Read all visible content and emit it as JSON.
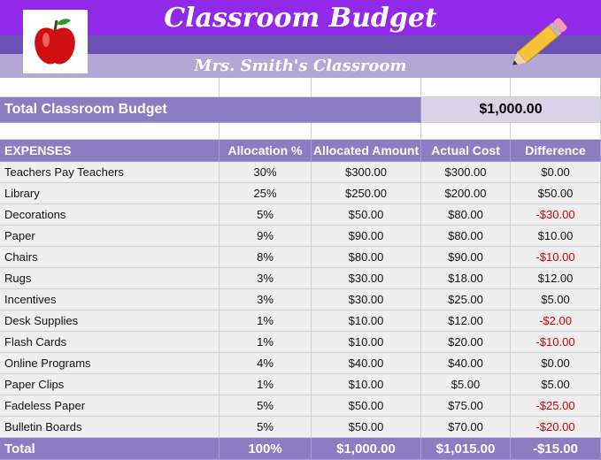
{
  "header": {
    "title": "Classroom Budget",
    "subtitle": "Mrs. Smith's Classroom"
  },
  "total_budget": {
    "label": "Total Classroom Budget",
    "value": "$1,000.00"
  },
  "table": {
    "columns": [
      "EXPENSES",
      "Allocation %",
      "Allocated Amount",
      "Actual Cost",
      "Difference"
    ],
    "rows": [
      [
        "Teachers Pay Teachers",
        "30%",
        "$300.00",
        "$300.00",
        "$0.00"
      ],
      [
        "Library",
        "25%",
        "$250.00",
        "$200.00",
        "$50.00"
      ],
      [
        "Decorations",
        "5%",
        "$50.00",
        "$80.00",
        "-$30.00"
      ],
      [
        "Paper",
        "9%",
        "$90.00",
        "$80.00",
        "$10.00"
      ],
      [
        "Chairs",
        "8%",
        "$80.00",
        "$90.00",
        "-$10.00"
      ],
      [
        "Rugs",
        "3%",
        "$30.00",
        "$18.00",
        "$12.00"
      ],
      [
        "Incentives",
        "3%",
        "$30.00",
        "$25.00",
        "$5.00"
      ],
      [
        "Desk Supplies",
        "1%",
        "$10.00",
        "$12.00",
        "-$2.00"
      ],
      [
        "Flash Cards",
        "1%",
        "$10.00",
        "$20.00",
        "-$10.00"
      ],
      [
        "Online Programs",
        "4%",
        "$40.00",
        "$40.00",
        "$0.00"
      ],
      [
        "Paper Clips",
        "1%",
        "$10.00",
        "$5.00",
        "$5.00"
      ],
      [
        "Fadeless Paper",
        "5%",
        "$50.00",
        "$75.00",
        "-$25.00"
      ],
      [
        "Bulletin Boards",
        "5%",
        "$50.00",
        "$70.00",
        "-$20.00"
      ]
    ],
    "total": [
      "Total",
      "100%",
      "$1,000.00",
      "$1,015.00",
      "-$15.00"
    ]
  }
}
